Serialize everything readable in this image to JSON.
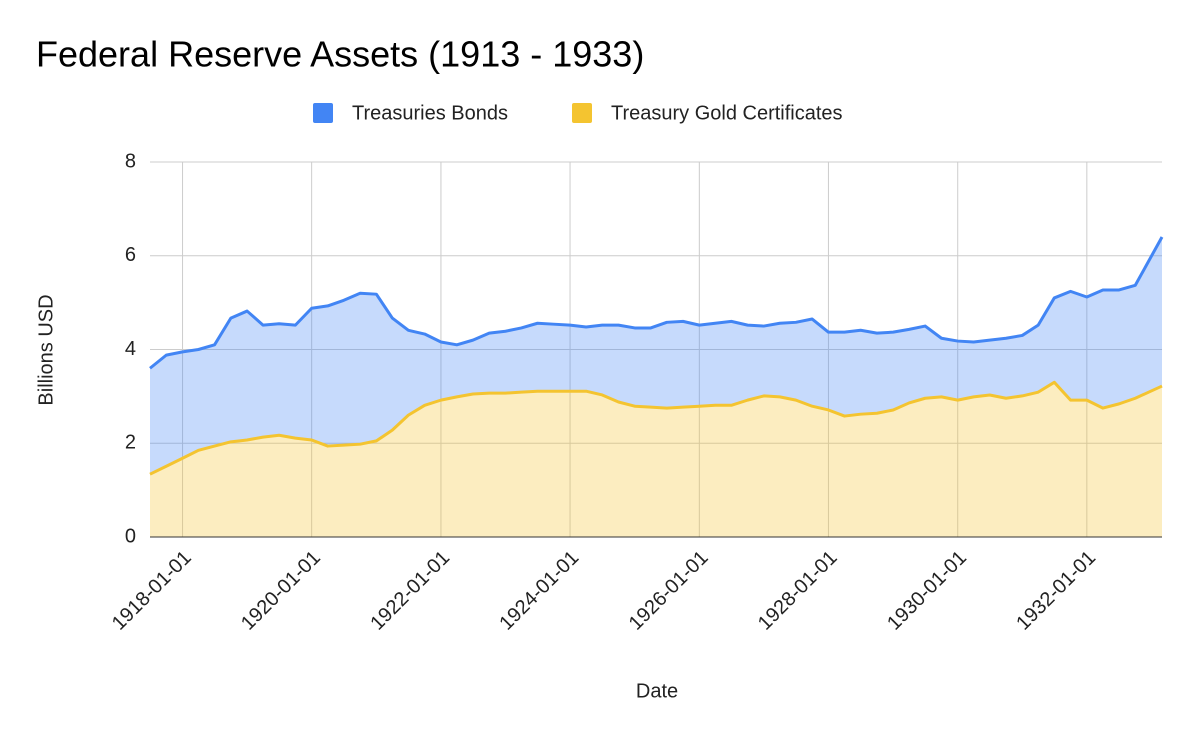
{
  "chart_data": {
    "type": "area",
    "stacked": true,
    "title": "Federal Reserve Assets (1913 - 1933)",
    "x_label": "Date",
    "y_label": "Billions USD",
    "legend": "top",
    "grid": true,
    "x": [
      "1917-07-01",
      "1917-10-01",
      "1918-01-01",
      "1918-04-01",
      "1918-07-01",
      "1918-10-01",
      "1919-01-01",
      "1919-04-01",
      "1919-07-01",
      "1919-10-01",
      "1920-01-01",
      "1920-04-01",
      "1920-07-01",
      "1920-10-01",
      "1921-01-01",
      "1921-04-01",
      "1921-07-01",
      "1921-10-01",
      "1922-01-01",
      "1922-04-01",
      "1922-07-01",
      "1922-10-01",
      "1923-01-01",
      "1923-04-01",
      "1923-07-01",
      "1923-10-01",
      "1924-01-01",
      "1924-04-01",
      "1924-07-01",
      "1924-10-01",
      "1925-01-01",
      "1925-04-01",
      "1925-07-01",
      "1925-10-01",
      "1926-01-01",
      "1926-04-01",
      "1926-07-01",
      "1926-10-01",
      "1927-01-01",
      "1927-04-01",
      "1927-07-01",
      "1927-10-01",
      "1928-01-01",
      "1928-04-01",
      "1928-07-01",
      "1928-10-01",
      "1929-01-01",
      "1929-04-01",
      "1929-07-01",
      "1929-10-01",
      "1930-01-01",
      "1930-04-01",
      "1930-07-01",
      "1930-10-01",
      "1931-01-01",
      "1931-04-01",
      "1931-07-01",
      "1931-10-01",
      "1932-01-01",
      "1932-04-01",
      "1932-07-01",
      "1932-10-01",
      "1933-03-01"
    ],
    "series": [
      {
        "name": "Treasuries Bonds",
        "color": "#4285f4",
        "values": [
          2.26,
          2.37,
          2.27,
          2.15,
          2.16,
          2.64,
          2.75,
          2.39,
          2.38,
          2.41,
          2.81,
          2.99,
          3.09,
          3.22,
          3.13,
          2.39,
          1.81,
          1.52,
          1.24,
          1.11,
          1.15,
          1.28,
          1.32,
          1.37,
          1.45,
          1.43,
          1.41,
          1.37,
          1.49,
          1.64,
          1.67,
          1.69,
          1.83,
          1.83,
          1.73,
          1.75,
          1.79,
          1.6,
          1.49,
          1.57,
          1.66,
          1.86,
          1.66,
          1.79,
          1.79,
          1.71,
          1.66,
          1.57,
          1.54,
          1.25,
          1.26,
          1.17,
          1.17,
          1.28,
          1.29,
          1.43,
          1.8,
          2.32,
          2.2,
          2.52,
          2.43,
          2.41,
          3.18
        ]
      },
      {
        "name": "Treasury Gold Certificates",
        "color": "#f4c430",
        "values": [
          1.34,
          1.51,
          1.68,
          1.85,
          1.94,
          2.03,
          2.07,
          2.13,
          2.17,
          2.11,
          2.07,
          1.94,
          1.96,
          1.98,
          2.05,
          2.28,
          2.6,
          2.81,
          2.92,
          2.99,
          3.05,
          3.07,
          3.07,
          3.09,
          3.11,
          3.11,
          3.11,
          3.11,
          3.03,
          2.88,
          2.79,
          2.77,
          2.75,
          2.77,
          2.79,
          2.81,
          2.81,
          2.92,
          3.01,
          2.99,
          2.92,
          2.79,
          2.71,
          2.58,
          2.62,
          2.64,
          2.71,
          2.86,
          2.96,
          2.99,
          2.92,
          2.99,
          3.03,
          2.96,
          3.01,
          3.09,
          3.3,
          2.92,
          2.92,
          2.75,
          2.84,
          2.96,
          3.22
        ]
      }
    ],
    "xlim": [
      "1917-07-01",
      "1933-03-01"
    ],
    "xticks": [
      "1918-01-01",
      "1920-01-01",
      "1922-01-01",
      "1924-01-01",
      "1926-01-01",
      "1928-01-01",
      "1930-01-01",
      "1932-01-01"
    ],
    "ylim": [
      0,
      8
    ],
    "yticks": [
      0,
      2,
      4,
      6,
      8
    ]
  }
}
